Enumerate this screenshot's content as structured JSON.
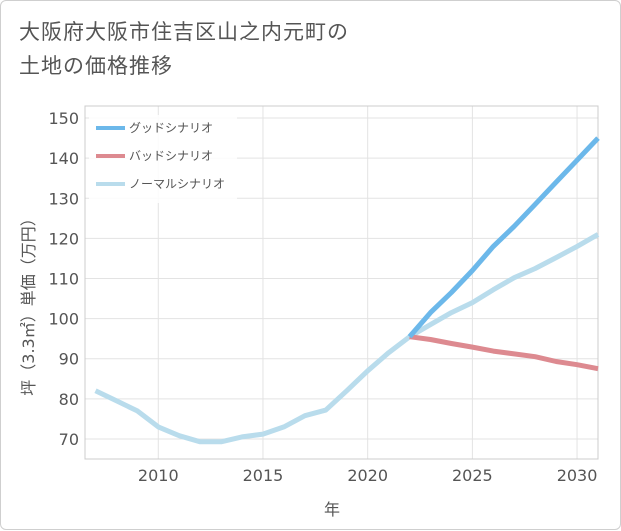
{
  "chart_data": {
    "type": "line",
    "title_lines": [
      "大阪府大阪市住吉区山之内元町の",
      "土地の価格推移"
    ],
    "xlabel": "年",
    "ylabel": "坪（3.3㎡）単価（万円）",
    "xlim": [
      2006.5,
      2031
    ],
    "ylim": [
      65,
      153
    ],
    "x_ticks": [
      2010,
      2015,
      2020,
      2025,
      2030
    ],
    "y_ticks": [
      70,
      80,
      90,
      100,
      110,
      120,
      130,
      140,
      150
    ],
    "grid": true,
    "legend_position": "top-left",
    "series": [
      {
        "name": "グッドシナリオ",
        "color": "#6cb8ea",
        "x": [
          2022,
          2023,
          2024,
          2025,
          2026,
          2027,
          2028,
          2029,
          2030,
          2031
        ],
        "y": [
          95.5,
          101.5,
          106.5,
          112,
          118,
          123,
          128.5,
          134,
          139.5,
          145
        ]
      },
      {
        "name": "バッドシナリオ",
        "color": "#dd8a90",
        "x": [
          2022,
          2023,
          2024,
          2025,
          2026,
          2027,
          2028,
          2029,
          2030,
          2031
        ],
        "y": [
          95.5,
          94.8,
          93.8,
          92.9,
          91.9,
          91.2,
          90.5,
          89.3,
          88.5,
          87.5
        ]
      },
      {
        "name": "ノーマルシナリオ",
        "color": "#b9dcec",
        "x": [
          2007,
          2008,
          2009,
          2010,
          2011,
          2012,
          2013,
          2014,
          2015,
          2016,
          2017,
          2018,
          2019,
          2020,
          2021,
          2022,
          2023,
          2024,
          2025,
          2026,
          2027,
          2028,
          2029,
          2030,
          2031
        ],
        "y": [
          82,
          79.5,
          77,
          73,
          70.8,
          69.3,
          69.3,
          70.5,
          71.2,
          73,
          75.8,
          77.2,
          82,
          87,
          91.5,
          95.5,
          98.5,
          101.5,
          104,
          107.2,
          110.2,
          112.5,
          115.2,
          118,
          121
        ]
      }
    ]
  }
}
